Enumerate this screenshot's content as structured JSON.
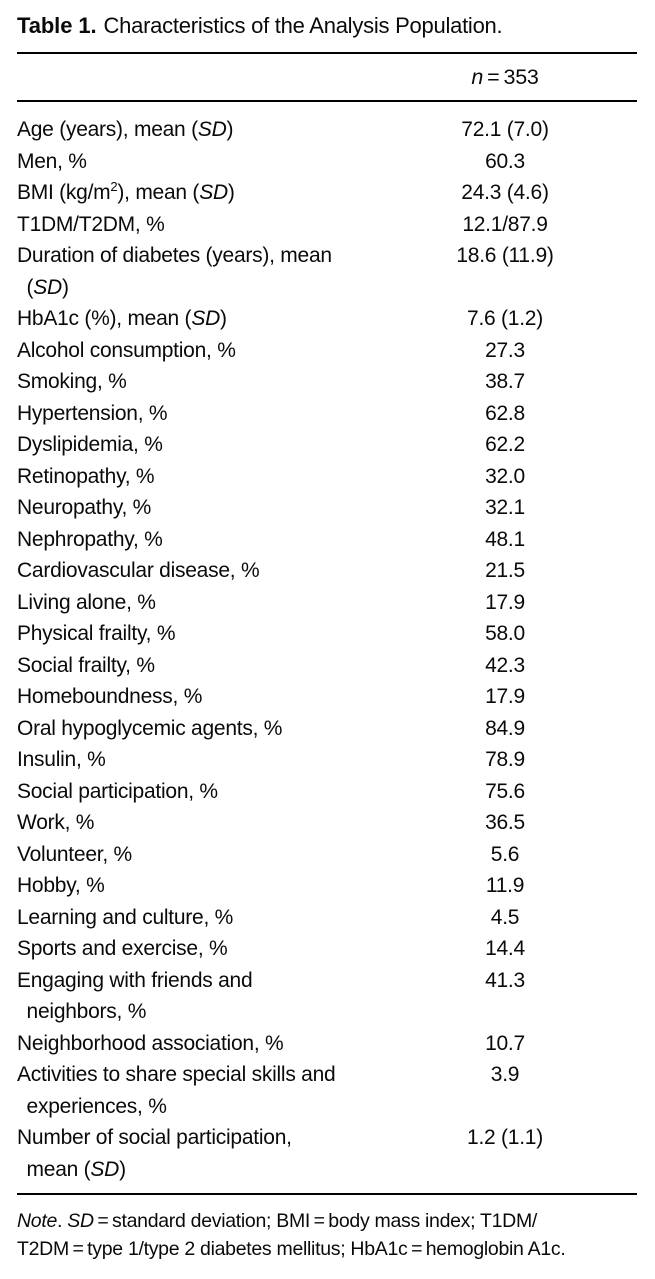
{
  "title": {
    "label": "Table 1.",
    "text": "Characteristics of the Analysis Population."
  },
  "table": {
    "header_value_html": "<i>n</i> = 353",
    "rows": [
      {
        "label_html": "Age (years), mean (<i>SD</i>)",
        "value": "72.1 (7.0)"
      },
      {
        "label_html": "Men, %",
        "value": "60.3"
      },
      {
        "label_html": "BMI (kg/m<sup>2</sup>), mean (<i>SD</i>)",
        "value": "24.3 (4.6)"
      },
      {
        "label_html": "T1DM/T2DM, %",
        "value": "12.1/87.9"
      },
      {
        "label_html": "Duration of diabetes (years), mean<br>&nbsp; (<i>SD</i>)",
        "value": "18.6 (11.9)"
      },
      {
        "label_html": "HbA1c (%), mean (<i>SD</i>)",
        "value": "7.6 (1.2)"
      },
      {
        "label_html": "Alcohol consumption, %",
        "value": "27.3"
      },
      {
        "label_html": "Smoking, %",
        "value": "38.7"
      },
      {
        "label_html": "Hypertension, %",
        "value": "62.8"
      },
      {
        "label_html": "Dyslipidemia, %",
        "value": "62.2"
      },
      {
        "label_html": "Retinopathy, %",
        "value": "32.0"
      },
      {
        "label_html": "Neuropathy, %",
        "value": "32.1"
      },
      {
        "label_html": "Nephropathy, %",
        "value": "48.1"
      },
      {
        "label_html": "Cardiovascular disease, %",
        "value": "21.5"
      },
      {
        "label_html": "Living alone, %",
        "value": "17.9"
      },
      {
        "label_html": "Physical frailty, %",
        "value": "58.0"
      },
      {
        "label_html": "Social frailty, %",
        "value": "42.3"
      },
      {
        "label_html": "Homeboundness, %",
        "value": "17.9"
      },
      {
        "label_html": "Oral hypoglycemic agents, %",
        "value": "84.9"
      },
      {
        "label_html": "Insulin, %",
        "value": "78.9"
      },
      {
        "label_html": "Social participation, %",
        "value": "75.6"
      },
      {
        "label_html": "Work, %",
        "value": "36.5"
      },
      {
        "label_html": "Volunteer, %",
        "value": "5.6"
      },
      {
        "label_html": "Hobby, %",
        "value": "11.9"
      },
      {
        "label_html": "Learning and culture, %",
        "value": "4.5"
      },
      {
        "label_html": "Sports and exercise, %",
        "value": "14.4"
      },
      {
        "label_html": "Engaging with friends and<br>&nbsp; neighbors, %",
        "value": "41.3"
      },
      {
        "label_html": "Neighborhood association, %",
        "value": "10.7"
      },
      {
        "label_html": "Activities to share special skills and<br>&nbsp; experiences, %",
        "value": "3.9"
      },
      {
        "label_html": "Number of social participation,<br>&nbsp; mean (<i>SD</i>)",
        "value": "1.2 (1.1)"
      }
    ]
  },
  "note_html": "<i>Note</i>. <i>SD</i> = standard deviation; BMI = body mass index; T1DM/<br>T2DM = type 1/type 2 diabetes mellitus; HbA1c = hemoglobin A1c."
}
